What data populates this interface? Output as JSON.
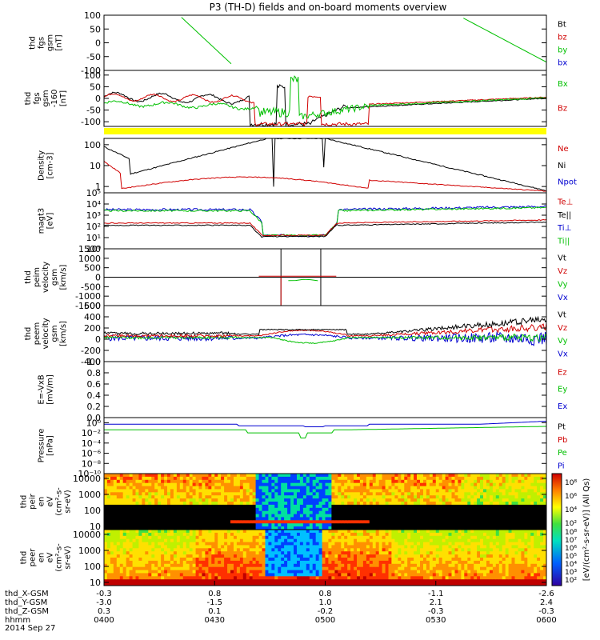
{
  "chart_data": {
    "type": "line",
    "title": "P3 (TH-D) fields and on-board moments overview",
    "x": {
      "tick_labels": [
        "0400",
        "0430",
        "0500",
        "0530",
        "0600"
      ]
    },
    "ephemeris": [
      {
        "label": "thd_X-GSM",
        "values": [
          "-0.3",
          "0.8",
          "0.8",
          "-1.1",
          "-2.6"
        ]
      },
      {
        "label": "thd_Y-GSM",
        "values": [
          "-3.0",
          "-1.5",
          "1.0",
          "2.1",
          "2.4"
        ]
      },
      {
        "label": "thd_Z-GSM",
        "values": [
          "0.3",
          "0.1",
          "-0.2",
          "-0.3",
          "-0.3"
        ]
      },
      {
        "label": "hhmm",
        "values": [
          "0400",
          "0430",
          "0500",
          "0530",
          "0600"
        ]
      }
    ],
    "date": "2014 Sep 27",
    "panels": [
      {
        "ylabel": [
          "thd",
          "fgs",
          "gsm",
          "[nT]"
        ],
        "ticks": [
          "100",
          "50",
          "0",
          "-50",
          "-100"
        ],
        "tick_values": [
          100,
          50,
          0,
          -50,
          -100
        ],
        "ylim": [
          -100,
          100
        ],
        "legend": [
          {
            "text": "Bt",
            "color": "#000000"
          },
          {
            "text": "bz",
            "color": "#d00000"
          },
          {
            "text": "by",
            "color": "#00c000"
          },
          {
            "text": "bx",
            "color": "#0000d0"
          }
        ]
      },
      {
        "ylabel": [
          "thd",
          "fgs",
          "gsm",
          "-160",
          "[nT]"
        ],
        "ticks": [
          "100",
          "50",
          "0",
          "-50",
          "-100"
        ],
        "tick_values": [
          100,
          50,
          0,
          -50,
          -100
        ],
        "ylim": [
          -120,
          120
        ],
        "legend": [
          {
            "text": "Bx",
            "color": "#00c000"
          },
          {
            "text": "Bz",
            "color": "#d00000"
          }
        ]
      },
      {
        "ylabel": [
          "Density",
          "[cm-3]"
        ],
        "ticks": [
          "100",
          "10",
          "1"
        ],
        "tick_values": [
          100,
          10,
          1
        ],
        "ylim": [
          0.5,
          200
        ],
        "legend": [
          {
            "text": "Ne",
            "color": "#d00000"
          },
          {
            "text": "Ni",
            "color": "#000000"
          },
          {
            "text": "Npot",
            "color": "#0000d0"
          }
        ]
      },
      {
        "ylabel": [
          "magt3",
          "[eV]"
        ],
        "ticks": [
          "10⁵",
          "10⁴",
          "10³",
          "10²",
          "10¹",
          "10⁰"
        ],
        "tick_values": [
          5,
          4,
          3,
          2,
          1,
          0
        ],
        "ylim": [
          0,
          5
        ],
        "legend": [
          {
            "text": "Te⊥",
            "color": "#d00000"
          },
          {
            "text": "Te||",
            "color": "#000000"
          },
          {
            "text": "Ti⊥",
            "color": "#0000d0"
          },
          {
            "text": "Ti||",
            "color": "#00c000"
          }
        ]
      },
      {
        "ylabel": [
          "thd",
          "peim",
          "velocity",
          "gsm",
          "[km/s]"
        ],
        "ticks": [
          "1500",
          "1000",
          "500",
          "0",
          "-500",
          "-1000",
          "-1500"
        ],
        "tick_values": [
          1500,
          1000,
          500,
          0,
          -500,
          -1000,
          -1500
        ],
        "ylim": [
          -1500,
          1500
        ],
        "legend": [
          {
            "text": "Vt",
            "color": "#000000"
          },
          {
            "text": "Vz",
            "color": "#d00000"
          },
          {
            "text": "Vy",
            "color": "#00c000"
          },
          {
            "text": "Vx",
            "color": "#0000d0"
          }
        ]
      },
      {
        "ylabel": [
          "thd",
          "peem",
          "velocity",
          "gsm",
          "[km/s]"
        ],
        "ticks": [
          "600",
          "400",
          "200",
          "0",
          "-200",
          "-400"
        ],
        "tick_values": [
          600,
          400,
          200,
          0,
          -200,
          -400
        ],
        "ylim": [
          -400,
          600
        ],
        "legend": [
          {
            "text": "Vt",
            "color": "#000000"
          },
          {
            "text": "Vz",
            "color": "#d00000"
          },
          {
            "text": "Vy",
            "color": "#00c000"
          },
          {
            "text": "Vx",
            "color": "#0000d0"
          }
        ]
      },
      {
        "ylabel": [
          "E=-VxB",
          "[mV/m]"
        ],
        "ticks": [
          "1.0",
          "0.8",
          "0.6",
          "0.4",
          "0.2",
          "0.0"
        ],
        "tick_values": [
          1.0,
          0.8,
          0.6,
          0.4,
          0.2,
          0.0
        ],
        "ylim": [
          0,
          1
        ],
        "legend": [
          {
            "text": "Ez",
            "color": "#d00000"
          },
          {
            "text": "Ey",
            "color": "#00c000"
          },
          {
            "text": "Ex",
            "color": "#0000d0"
          }
        ]
      },
      {
        "ylabel": [
          "Pressure",
          "[nPa]"
        ],
        "ticks": [
          "10⁰",
          "10⁻²",
          "10⁻⁴",
          "10⁻⁶",
          "10⁻⁸",
          "10⁻¹⁰"
        ],
        "tick_values": [
          0,
          -2,
          -4,
          -6,
          -8,
          -10
        ],
        "ylim": [
          -10,
          1
        ],
        "legend": [
          {
            "text": "Pt",
            "color": "#000000"
          },
          {
            "text": "Pb",
            "color": "#d00000"
          },
          {
            "text": "Pe",
            "color": "#00c000"
          },
          {
            "text": "Pi",
            "color": "#0000d0"
          }
        ]
      },
      {
        "ylabel": [
          "thd",
          "peir",
          "en",
          "eV",
          "(cm²-s-",
          "sr-eV)"
        ],
        "ticks": [
          "10000",
          "1000",
          "100",
          "10"
        ],
        "tick_values": [
          4,
          3,
          2,
          1
        ],
        "ylim": [
          0.8,
          4.3
        ],
        "spectrogram": "ion"
      },
      {
        "ylabel": [
          "thd",
          "peer",
          "en",
          "eV",
          "(cm²-s-",
          "sr-eV)"
        ],
        "ticks": [
          "10000",
          "1000",
          "100",
          "10"
        ],
        "tick_values": [
          4,
          3,
          2,
          1
        ],
        "ylim": [
          0.8,
          4.3
        ],
        "spectrogram": "electron"
      }
    ],
    "colorbar": {
      "label": "[eV/(cm²-s-sr-eV)] (All Qs)",
      "ticks_top": [
        "10⁸",
        "10⁶",
        "10⁴",
        "10²"
      ],
      "ticks_bottom": [
        "10⁸",
        "10⁷",
        "10⁶",
        "10⁵",
        "10⁴",
        "10³",
        "10²"
      ]
    }
  }
}
